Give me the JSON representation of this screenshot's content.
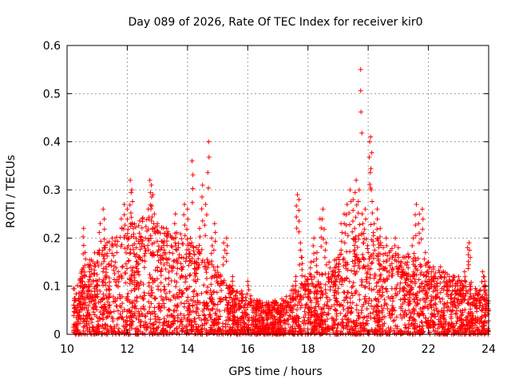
{
  "chart_data": {
    "type": "scatter",
    "title": "Day 089 of 2026, Rate Of TEC Index for receiver kir0",
    "xlabel": "GPS time / hours",
    "ylabel": "ROTI / TECUs",
    "xlim": [
      10,
      24
    ],
    "ylim": [
      0,
      0.6
    ],
    "xticks": [
      10,
      12,
      14,
      16,
      18,
      20,
      22,
      24
    ],
    "yticks": [
      0,
      0.1,
      0.2,
      0.3,
      0.4,
      0.5,
      0.6
    ],
    "xtick_labels": [
      "10",
      "12",
      "14",
      "16",
      "18",
      "20",
      "22",
      "24"
    ],
    "ytick_labels": [
      "0",
      "0.1",
      "0.2",
      "0.3",
      "0.4",
      "0.5",
      "0.6"
    ],
    "grid": true,
    "marker": "+",
    "marker_color": "#ff0000",
    "series": [
      {
        "name": "ROTI",
        "points": [
          [
            10.3,
            0.02
          ],
          [
            10.35,
            0.06
          ],
          [
            10.4,
            0.04
          ],
          [
            10.45,
            0.08
          ],
          [
            10.5,
            0.12
          ],
          [
            10.55,
            0.22
          ],
          [
            10.6,
            0.17
          ],
          [
            10.65,
            0.1
          ],
          [
            10.7,
            0.05
          ],
          [
            10.75,
            0.13
          ],
          [
            10.8,
            0.09
          ],
          [
            10.9,
            0.07
          ],
          [
            11.0,
            0.11
          ],
          [
            11.1,
            0.23
          ],
          [
            11.2,
            0.26
          ],
          [
            11.25,
            0.18
          ],
          [
            11.3,
            0.14
          ],
          [
            11.4,
            0.1
          ],
          [
            11.5,
            0.2
          ],
          [
            11.6,
            0.15
          ],
          [
            11.7,
            0.13
          ],
          [
            11.8,
            0.24
          ],
          [
            11.9,
            0.27
          ],
          [
            12.0,
            0.26
          ],
          [
            12.05,
            0.2
          ],
          [
            12.1,
            0.32
          ],
          [
            12.15,
            0.3
          ],
          [
            12.2,
            0.22
          ],
          [
            12.3,
            0.18
          ],
          [
            12.4,
            0.21
          ],
          [
            12.5,
            0.24
          ],
          [
            12.6,
            0.2
          ],
          [
            12.7,
            0.26
          ],
          [
            12.75,
            0.32
          ],
          [
            12.8,
            0.31
          ],
          [
            12.85,
            0.29
          ],
          [
            12.9,
            0.25
          ],
          [
            13.0,
            0.23
          ],
          [
            13.1,
            0.21
          ],
          [
            13.2,
            0.19
          ],
          [
            13.3,
            0.22
          ],
          [
            13.4,
            0.17
          ],
          [
            13.5,
            0.2
          ],
          [
            13.6,
            0.25
          ],
          [
            13.7,
            0.18
          ],
          [
            13.8,
            0.16
          ],
          [
            13.9,
            0.27
          ],
          [
            14.0,
            0.26
          ],
          [
            14.1,
            0.2
          ],
          [
            14.15,
            0.36
          ],
          [
            14.2,
            0.18
          ],
          [
            14.3,
            0.15
          ],
          [
            14.4,
            0.22
          ],
          [
            14.5,
            0.31
          ],
          [
            14.6,
            0.27
          ],
          [
            14.7,
            0.4
          ],
          [
            14.8,
            0.2
          ],
          [
            14.9,
            0.23
          ],
          [
            15.0,
            0.14
          ],
          [
            15.1,
            0.12
          ],
          [
            15.2,
            0.19
          ],
          [
            15.3,
            0.2
          ],
          [
            15.4,
            0.1
          ],
          [
            15.5,
            0.12
          ],
          [
            15.6,
            0.08
          ],
          [
            15.7,
            0.07
          ],
          [
            15.8,
            0.09
          ],
          [
            15.9,
            0.06
          ],
          [
            16.0,
            0.11
          ],
          [
            16.1,
            0.08
          ],
          [
            16.2,
            0.06
          ],
          [
            16.3,
            0.05
          ],
          [
            16.4,
            0.07
          ],
          [
            16.5,
            0.06
          ],
          [
            16.6,
            0.05
          ],
          [
            16.7,
            0.06
          ],
          [
            16.8,
            0.05
          ],
          [
            16.9,
            0.07
          ],
          [
            17.0,
            0.06
          ],
          [
            17.1,
            0.05
          ],
          [
            17.2,
            0.07
          ],
          [
            17.3,
            0.06
          ],
          [
            17.4,
            0.08
          ],
          [
            17.5,
            0.1
          ],
          [
            17.6,
            0.12
          ],
          [
            17.65,
            0.29
          ],
          [
            17.7,
            0.28
          ],
          [
            17.75,
            0.19
          ],
          [
            17.8,
            0.16
          ],
          [
            17.9,
            0.12
          ],
          [
            18.0,
            0.1
          ],
          [
            18.1,
            0.15
          ],
          [
            18.2,
            0.2
          ],
          [
            18.3,
            0.17
          ],
          [
            18.4,
            0.24
          ],
          [
            18.5,
            0.26
          ],
          [
            18.6,
            0.19
          ],
          [
            18.7,
            0.15
          ],
          [
            18.8,
            0.13
          ],
          [
            18.9,
            0.12
          ],
          [
            19.0,
            0.16
          ],
          [
            19.1,
            0.23
          ],
          [
            19.2,
            0.25
          ],
          [
            19.3,
            0.27
          ],
          [
            19.4,
            0.3
          ],
          [
            19.5,
            0.28
          ],
          [
            19.55,
            0.22
          ],
          [
            19.6,
            0.32
          ],
          [
            19.7,
            0.3
          ],
          [
            19.75,
            0.55
          ],
          [
            19.8,
            0.25
          ],
          [
            19.9,
            0.26
          ],
          [
            20.0,
            0.17
          ],
          [
            20.05,
            0.4
          ],
          [
            20.08,
            0.41
          ],
          [
            20.1,
            0.3
          ],
          [
            20.2,
            0.23
          ],
          [
            20.3,
            0.26
          ],
          [
            20.4,
            0.22
          ],
          [
            20.5,
            0.18
          ],
          [
            20.6,
            0.2
          ],
          [
            20.7,
            0.17
          ],
          [
            20.8,
            0.16
          ],
          [
            20.9,
            0.2
          ],
          [
            21.0,
            0.18
          ],
          [
            21.1,
            0.14
          ],
          [
            21.2,
            0.16
          ],
          [
            21.3,
            0.15
          ],
          [
            21.4,
            0.12
          ],
          [
            21.5,
            0.2
          ],
          [
            21.6,
            0.27
          ],
          [
            21.7,
            0.25
          ],
          [
            21.8,
            0.26
          ],
          [
            21.9,
            0.17
          ],
          [
            22.0,
            0.15
          ],
          [
            22.1,
            0.13
          ],
          [
            22.2,
            0.12
          ],
          [
            22.3,
            0.1
          ],
          [
            22.4,
            0.14
          ],
          [
            22.5,
            0.13
          ],
          [
            22.6,
            0.11
          ],
          [
            22.7,
            0.12
          ],
          [
            22.8,
            0.09
          ],
          [
            22.9,
            0.1
          ],
          [
            23.0,
            0.12
          ],
          [
            23.1,
            0.11
          ],
          [
            23.2,
            0.13
          ],
          [
            23.3,
            0.18
          ],
          [
            23.35,
            0.19
          ],
          [
            23.4,
            0.1
          ],
          [
            23.5,
            0.08
          ],
          [
            23.6,
            0.07
          ],
          [
            23.7,
            0.09
          ],
          [
            23.8,
            0.13
          ],
          [
            23.85,
            0.12
          ],
          [
            23.9,
            0.1
          ],
          [
            23.95,
            0.07
          ],
          [
            24.0,
            0.05
          ]
        ],
        "envelope": [
          [
            10.2,
            0.07
          ],
          [
            10.5,
            0.1
          ],
          [
            10.8,
            0.12
          ],
          [
            11.0,
            0.13
          ],
          [
            11.5,
            0.15
          ],
          [
            12.0,
            0.17
          ],
          [
            12.5,
            0.18
          ],
          [
            13.0,
            0.17
          ],
          [
            13.5,
            0.16
          ],
          [
            14.0,
            0.15
          ],
          [
            14.5,
            0.13
          ],
          [
            15.0,
            0.1
          ],
          [
            15.5,
            0.07
          ],
          [
            16.0,
            0.06
          ],
          [
            16.5,
            0.05
          ],
          [
            17.0,
            0.05
          ],
          [
            17.5,
            0.07
          ],
          [
            18.0,
            0.09
          ],
          [
            18.5,
            0.1
          ],
          [
            19.0,
            0.12
          ],
          [
            19.5,
            0.15
          ],
          [
            20.0,
            0.16
          ],
          [
            20.5,
            0.14
          ],
          [
            21.0,
            0.13
          ],
          [
            21.5,
            0.12
          ],
          [
            22.0,
            0.11
          ],
          [
            22.5,
            0.1
          ],
          [
            23.0,
            0.09
          ],
          [
            23.5,
            0.08
          ],
          [
            24.0,
            0.07
          ]
        ]
      }
    ]
  }
}
